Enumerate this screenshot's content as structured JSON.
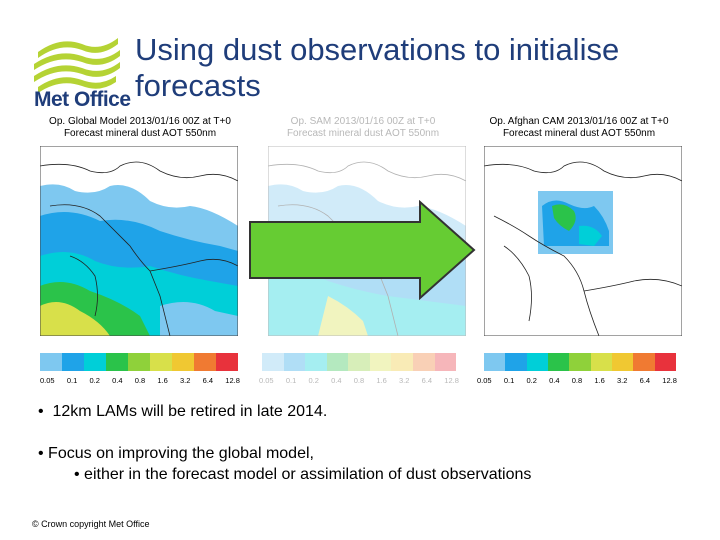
{
  "logo": {
    "text": "Met Office"
  },
  "title": "Using dust observations to initialise forecasts",
  "panels": [
    {
      "title_line1": "Op. Global Model 2013/01/16 00Z at T+0",
      "title_line2": "Forecast mineral dust AOT 550nm",
      "scale_labels": [
        "0.05",
        "0.1",
        "0.2",
        "0.4",
        "0.8",
        "1.6",
        "3.2",
        "6.4",
        "12.8"
      ]
    },
    {
      "title_line1": "Op. SAM 2013/01/16 00Z at T+0",
      "title_line2": "Forecast mineral dust AOT 550nm",
      "scale_labels": [
        "0.05",
        "0.1",
        "0.2",
        "0.4",
        "0.8",
        "1.6",
        "3.2",
        "6.4",
        "12.8"
      ]
    },
    {
      "title_line1": "Op. Afghan CAM 2013/01/16 00Z at T+0",
      "title_line2": "Forecast mineral dust AOT 550nm",
      "scale_labels": [
        "0.05",
        "0.1",
        "0.2",
        "0.4",
        "0.8",
        "1.6",
        "3.2",
        "6.4",
        "12.8"
      ]
    }
  ],
  "scale_colors": [
    "#7ec8f0",
    "#1fa3e8",
    "#00cfd8",
    "#2bc34a",
    "#8fd13a",
    "#d8e04a",
    "#f0c832",
    "#f07a32",
    "#e8323c"
  ],
  "arrow_color": "#66cc33",
  "bullets": {
    "b1": "12km LAMs will be retired in late 2014.",
    "b2": "Focus on improving the global model,",
    "b2_sub": "either in the forecast model or assimilation of dust observations"
  },
  "footer": "© Crown copyright   Met Office"
}
